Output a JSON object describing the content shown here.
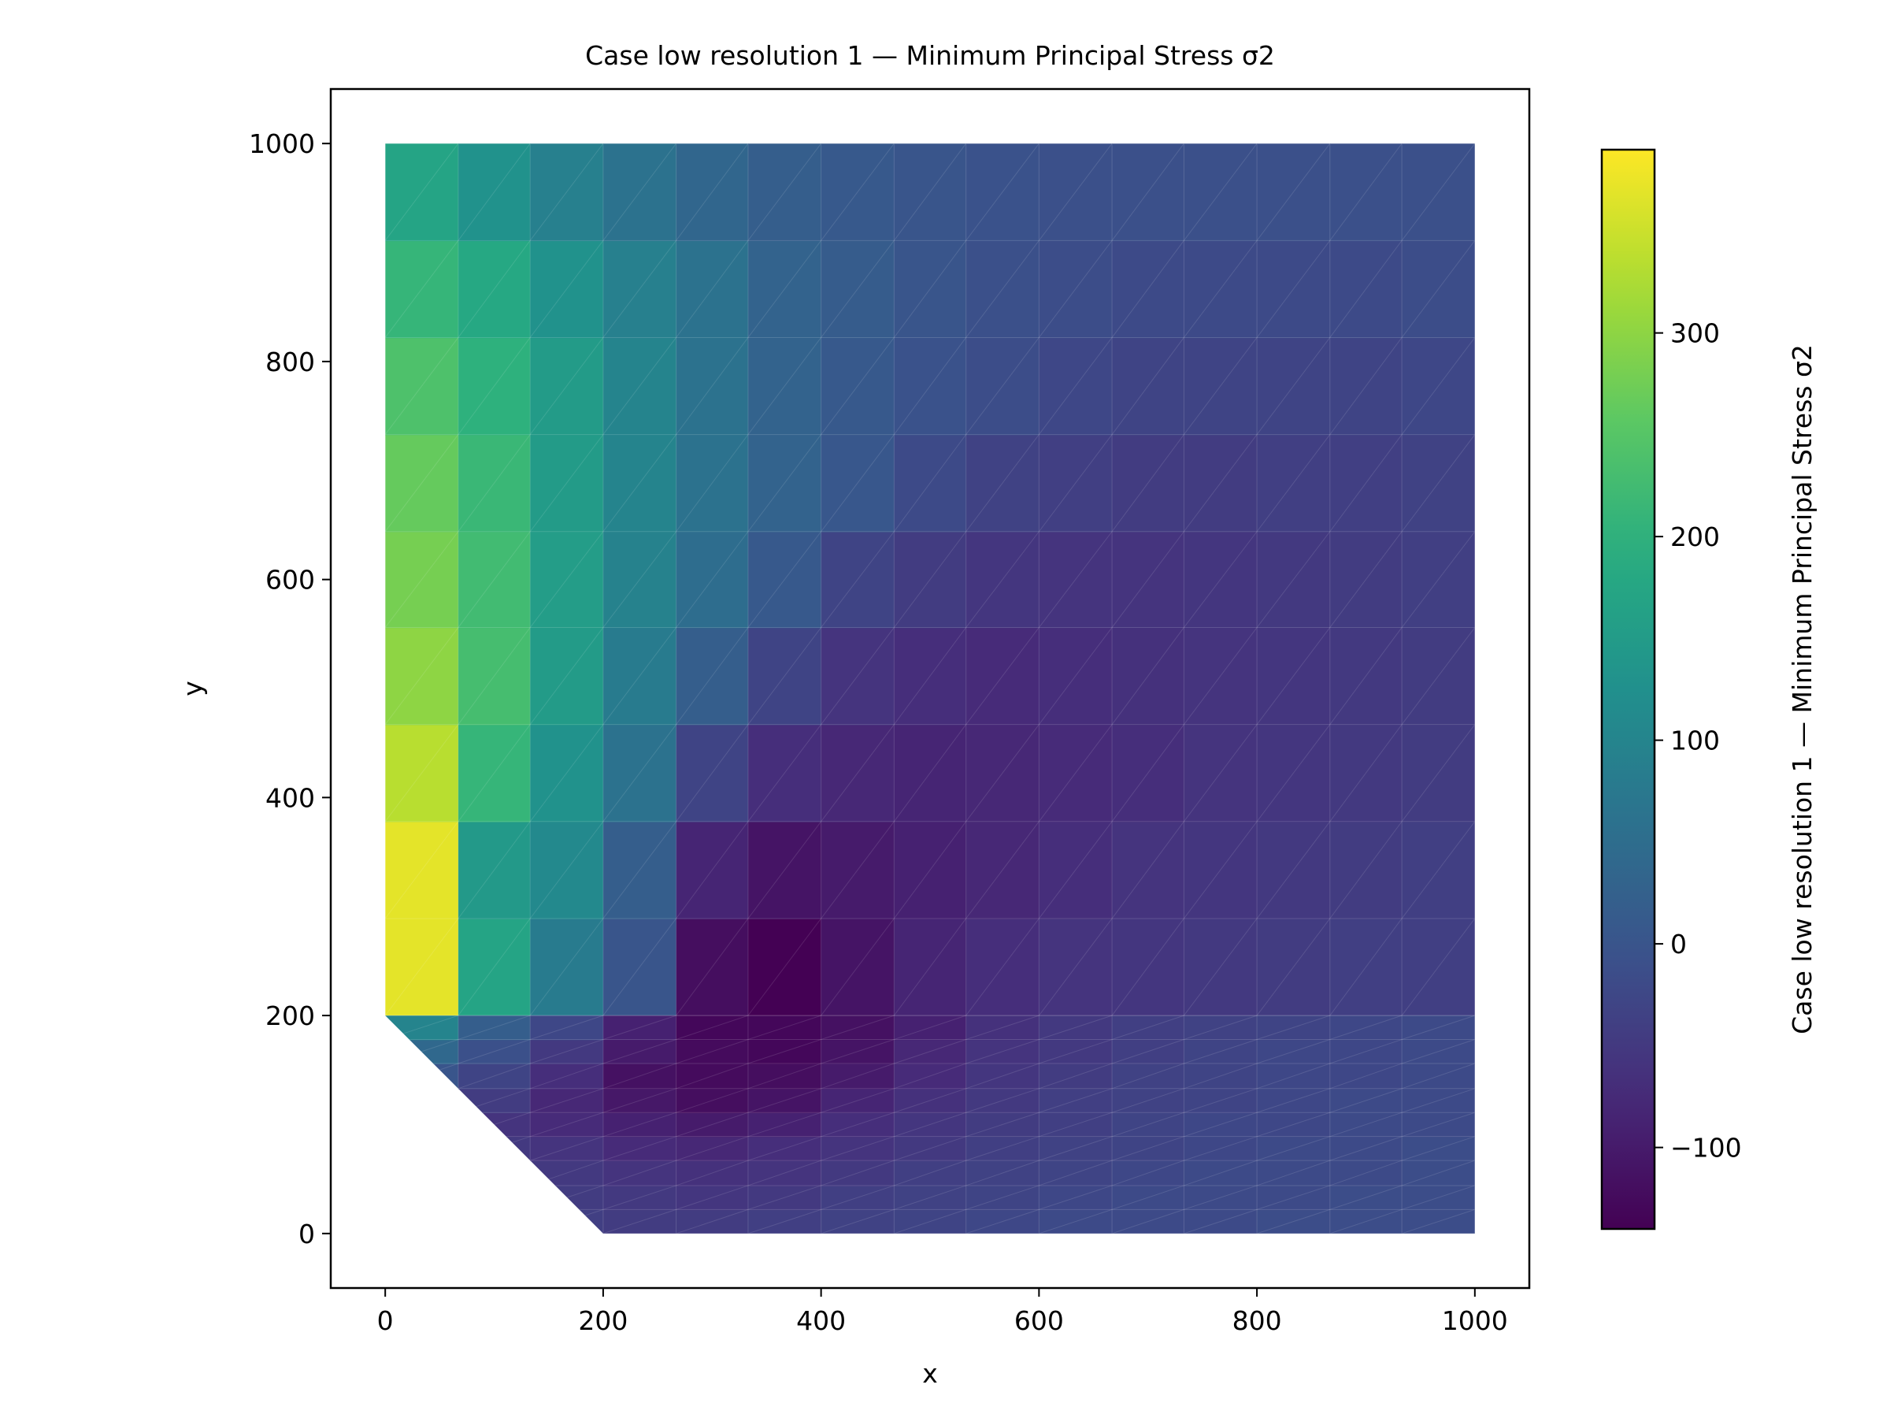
{
  "chart_data": {
    "type": "heatmap",
    "title": "Case low resolution 1 — Minimum Principal Stress σ2",
    "xlabel": "x",
    "ylabel": "y",
    "xlim": [
      -50,
      1050
    ],
    "ylim": [
      -50,
      1050
    ],
    "x_ticks": [
      "0",
      "200",
      "400",
      "600",
      "800",
      "1000"
    ],
    "y_ticks": [
      "0",
      "200",
      "400",
      "600",
      "800",
      "1000"
    ],
    "colorbar": {
      "label": "Case low resolution 1 — Minimum Principal Stress σ2",
      "range": [
        -140,
        390
      ],
      "ticks": [
        "−100",
        "0",
        "100",
        "200",
        "300"
      ],
      "tick_values": [
        -100,
        0,
        100,
        200,
        300
      ],
      "colormap": "viridis"
    },
    "upper_grid": {
      "x_edges": [
        0,
        67,
        133,
        200,
        267,
        333,
        400,
        467,
        533,
        600,
        667,
        733,
        800,
        867,
        933,
        1000
      ],
      "y_edges": [
        200,
        289,
        378,
        467,
        556,
        644,
        733,
        822,
        911,
        1000
      ],
      "values": [
        [
          370,
          170,
          80,
          0,
          -120,
          -140,
          -110,
          -85,
          -70,
          -60,
          -55,
          -50,
          -45,
          -40,
          -40
        ],
        [
          370,
          145,
          110,
          20,
          -85,
          -110,
          -100,
          -90,
          -80,
          -70,
          -60,
          -55,
          -50,
          -45,
          -40
        ],
        [
          335,
          210,
          130,
          60,
          -30,
          -70,
          -80,
          -85,
          -80,
          -75,
          -70,
          -60,
          -55,
          -50,
          -45
        ],
        [
          300,
          230,
          150,
          80,
          20,
          -30,
          -60,
          -70,
          -75,
          -70,
          -65,
          -60,
          -55,
          -50,
          -45
        ],
        [
          280,
          225,
          155,
          95,
          50,
          10,
          -30,
          -45,
          -55,
          -60,
          -60,
          -55,
          -50,
          -45,
          -40
        ],
        [
          265,
          215,
          150,
          100,
          60,
          30,
          5,
          -20,
          -35,
          -40,
          -45,
          -45,
          -40,
          -40,
          -35
        ],
        [
          240,
          200,
          150,
          100,
          60,
          30,
          10,
          -5,
          -15,
          -25,
          -30,
          -30,
          -30,
          -30,
          -25
        ],
        [
          210,
          180,
          130,
          90,
          60,
          30,
          15,
          0,
          -10,
          -15,
          -20,
          -20,
          -20,
          -20,
          -15
        ],
        [
          170,
          130,
          90,
          60,
          35,
          20,
          10,
          0,
          -5,
          -10,
          -10,
          -10,
          -10,
          -10,
          -10
        ]
      ]
    },
    "lower_strip": {
      "x_edges": [
        0,
        67,
        133,
        200,
        267,
        333,
        400,
        467,
        533,
        600,
        667,
        733,
        800,
        867,
        933,
        1000
      ],
      "y_edges": [
        0,
        22,
        44,
        67,
        89,
        111,
        133,
        156,
        178,
        200
      ],
      "values": [
        [
          -40,
          -40,
          -40,
          -45,
          -45,
          -40,
          -35,
          -30,
          -25,
          -20,
          -20,
          -20,
          -15,
          -15,
          -15
        ],
        [
          -40,
          -40,
          -45,
          -50,
          -55,
          -50,
          -40,
          -35,
          -30,
          -25,
          -20,
          -20,
          -20,
          -15,
          -15
        ],
        [
          -40,
          -45,
          -50,
          -60,
          -65,
          -60,
          -50,
          -40,
          -35,
          -30,
          -25,
          -20,
          -20,
          -20,
          -15
        ],
        [
          -35,
          -50,
          -60,
          -75,
          -80,
          -70,
          -60,
          -50,
          -40,
          -35,
          -30,
          -25,
          -20,
          -20,
          -15
        ],
        [
          -30,
          -60,
          -75,
          -90,
          -100,
          -90,
          -70,
          -55,
          -45,
          -40,
          -30,
          -25,
          -25,
          -20,
          -20
        ],
        [
          -20,
          -45,
          -80,
          -105,
          -120,
          -110,
          -85,
          -65,
          -50,
          -40,
          -35,
          -30,
          -25,
          -20,
          -20
        ],
        [
          0,
          -30,
          -70,
          -115,
          -125,
          -120,
          -100,
          -75,
          -55,
          -45,
          -35,
          -30,
          -25,
          -25,
          -20
        ],
        [
          40,
          -10,
          -50,
          -100,
          -125,
          -130,
          -110,
          -80,
          -60,
          -50,
          -40,
          -30,
          -25,
          -25,
          -20
        ],
        [
          100,
          20,
          -25,
          -90,
          -130,
          -130,
          -115,
          -90,
          -65,
          -50,
          -40,
          -35,
          -30,
          -25,
          -20
        ]
      ]
    }
  }
}
